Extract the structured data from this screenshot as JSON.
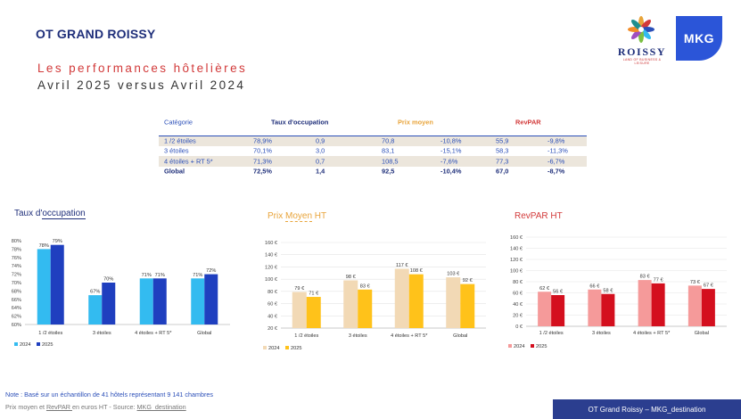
{
  "header": {
    "title": "OT GRAND ROISSY",
    "subtitle_line1": "Les performances hôtelières",
    "subtitle_line2": "Avril 2025 versus Avril 2024"
  },
  "logos": {
    "roissy_name": "ROISSY",
    "roissy_tagline": "LAND OF BUSINESS & LEISURE",
    "mkg": "MKG"
  },
  "table": {
    "headers": {
      "category": "Catégorie",
      "occupancy": "Taux d'occupation",
      "price": "Prix moyen",
      "revpar": "RevPAR"
    },
    "rows": [
      {
        "cat": "1 /2 étoiles",
        "occ": "78,9%",
        "occ_var": "0,9",
        "price": "70,8",
        "price_var": "-10,8%",
        "revpar": "55,9",
        "revpar_var": "-9,8%"
      },
      {
        "cat": "3 étoiles",
        "occ": "70,1%",
        "occ_var": "3,0",
        "price": "83,1",
        "price_var": "-15,1%",
        "revpar": "58,3",
        "revpar_var": "-11,3%"
      },
      {
        "cat": "4 étoiles + RT 5*",
        "occ": "71,3%",
        "occ_var": "0,7",
        "price": "108,5",
        "price_var": "-7,6%",
        "revpar": "77,3",
        "revpar_var": "-6,7%"
      },
      {
        "cat": "Global",
        "occ": "72,5%",
        "occ_var": "1,4",
        "price": "92,5",
        "price_var": "-10,4%",
        "revpar": "67,0",
        "revpar_var": "-8,7%"
      }
    ]
  },
  "chart_titles": {
    "occupancy_part1": "Taux d'",
    "occupancy_part2": "occupation",
    "price_part1": "Prix ",
    "price_part2": "Moyen",
    "price_part3": " HT",
    "revpar": "RevPAR HT"
  },
  "chart_data": [
    {
      "type": "bar",
      "title": "Taux d'occupation",
      "categories": [
        "1 /2 étoiles",
        "3 étoiles",
        "4 étoiles + RT 5*",
        "Global"
      ],
      "series": [
        {
          "name": "2024",
          "values": [
            78,
            67,
            71,
            71
          ],
          "labels": [
            "78%",
            "67%",
            "71%",
            "71%"
          ],
          "color": "#33bbf0"
        },
        {
          "name": "2025",
          "values": [
            79,
            70,
            71,
            72
          ],
          "labels": [
            "79%",
            "70%",
            "71%",
            "72%"
          ],
          "color": "#1f3fbf"
        }
      ],
      "ylim": [
        60,
        80
      ],
      "yticks": [
        "60%",
        "62%",
        "64%",
        "66%",
        "68%",
        "70%",
        "72%",
        "74%",
        "76%",
        "78%",
        "80%"
      ],
      "grid": false,
      "legend": "bottom-left"
    },
    {
      "type": "bar",
      "title": "Prix Moyen HT",
      "categories": [
        "1 /2 étoiles",
        "3 étoiles",
        "4 étoiles + RT 5*",
        "Global"
      ],
      "series": [
        {
          "name": "2024",
          "values": [
            79,
            98,
            117,
            103
          ],
          "labels": [
            "79 €",
            "98 €",
            "117 €",
            "103 €"
          ],
          "color": "#f2d9b5"
        },
        {
          "name": "2025",
          "values": [
            71,
            83,
            108,
            92
          ],
          "labels": [
            "71 €",
            "83 €",
            "108 €",
            "92 €"
          ],
          "color": "#ffc21a"
        }
      ],
      "ylim": [
        20,
        160
      ],
      "yticks": [
        "20 €",
        "40 €",
        "60 €",
        "80 €",
        "100 €",
        "120 €",
        "140 €",
        "160 €"
      ],
      "grid": true,
      "legend": "bottom-left"
    },
    {
      "type": "bar",
      "title": "RevPAR HT",
      "categories": [
        "1 /2 étoiles",
        "3 étoiles",
        "4 étoiles + RT 5*",
        "Global"
      ],
      "series": [
        {
          "name": "2024",
          "values": [
            62,
            66,
            83,
            73
          ],
          "labels": [
            "62 €",
            "66 €",
            "83 €",
            "73 €"
          ],
          "color": "#f59a9a"
        },
        {
          "name": "2025",
          "values": [
            56,
            58,
            77,
            67
          ],
          "labels": [
            "56 €",
            "58 €",
            "77 €",
            "67 €"
          ],
          "color": "#d40f1e"
        }
      ],
      "ylim": [
        0,
        160
      ],
      "yticks": [
        "0 €",
        "20 €",
        "40 €",
        "60 €",
        "80 €",
        "100 €",
        "120 €",
        "140 €",
        "160 €"
      ],
      "grid": true,
      "legend": "bottom-left"
    }
  ],
  "footer": {
    "note": "Note : Basé sur un échantillon de 41 hôtels représentant 9 141 chambres",
    "source_part1": "Prix moyen et ",
    "source_part2": "RevPAR ",
    "source_part3": "en euros HT - Source: ",
    "source_part4": "MKG_destination",
    "bar": "OT Grand Roissy  – MKG_destination"
  }
}
